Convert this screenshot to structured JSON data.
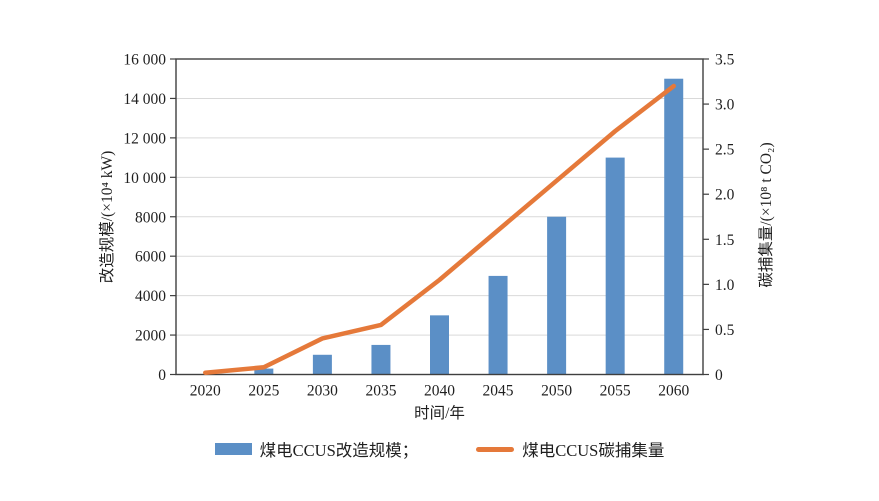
{
  "figure": {
    "background": "#ffffff",
    "x_title": "时间/年"
  },
  "colors": {
    "bar": "#5b8fc6",
    "line": "#e5793a",
    "grid": "#d9d9d9",
    "axis": "#3f3f3f",
    "text": "#1f1f1f"
  },
  "chart_data": {
    "type": "bar",
    "subtype": "combo-bar-line-dual-axis",
    "categories": [
      "2020",
      "2025",
      "2030",
      "2035",
      "2040",
      "2045",
      "2050",
      "2055",
      "2060"
    ],
    "series": [
      {
        "name": "煤电CCUS改造规模",
        "type": "bar",
        "axis": "left",
        "color": "#5b8fc6",
        "values": [
          0,
          300,
          1000,
          1500,
          3000,
          5000,
          8000,
          11000,
          15000
        ]
      },
      {
        "name": "煤电CCUS碳捕集量",
        "type": "line",
        "axis": "right",
        "color": "#e5793a",
        "values": [
          0.02,
          0.08,
          0.4,
          0.55,
          1.05,
          1.6,
          2.15,
          2.7,
          3.2
        ]
      }
    ],
    "xlabel": "时间/年",
    "left_axis": {
      "label": "改造规模/(×10⁴ kW)",
      "lim": [
        0,
        16000
      ],
      "tick_values": [
        0,
        2000,
        4000,
        6000,
        8000,
        10000,
        12000,
        14000,
        16000
      ],
      "tick_labels": [
        "0",
        "2000",
        "4000",
        "6000",
        "8000",
        "10 000",
        "12 000",
        "14 000",
        "16 000"
      ]
    },
    "right_axis": {
      "label": "碳捕集量/(×10⁸ t CO₂)",
      "lim": [
        0,
        3.5
      ],
      "tick_values": [
        0,
        0.5,
        1.0,
        1.5,
        2.0,
        2.5,
        3.0,
        3.5
      ],
      "tick_labels": [
        "0",
        "0.5",
        "1.0",
        "1.5",
        "2.0",
        "2.5",
        "3.0",
        "3.5"
      ]
    },
    "grid": true,
    "legend_position": "bottom",
    "legend": [
      {
        "label": "煤电CCUS改造规模；",
        "swatch": "bar"
      },
      {
        "label": "煤电CCUS碳捕集量",
        "swatch": "line"
      }
    ]
  }
}
